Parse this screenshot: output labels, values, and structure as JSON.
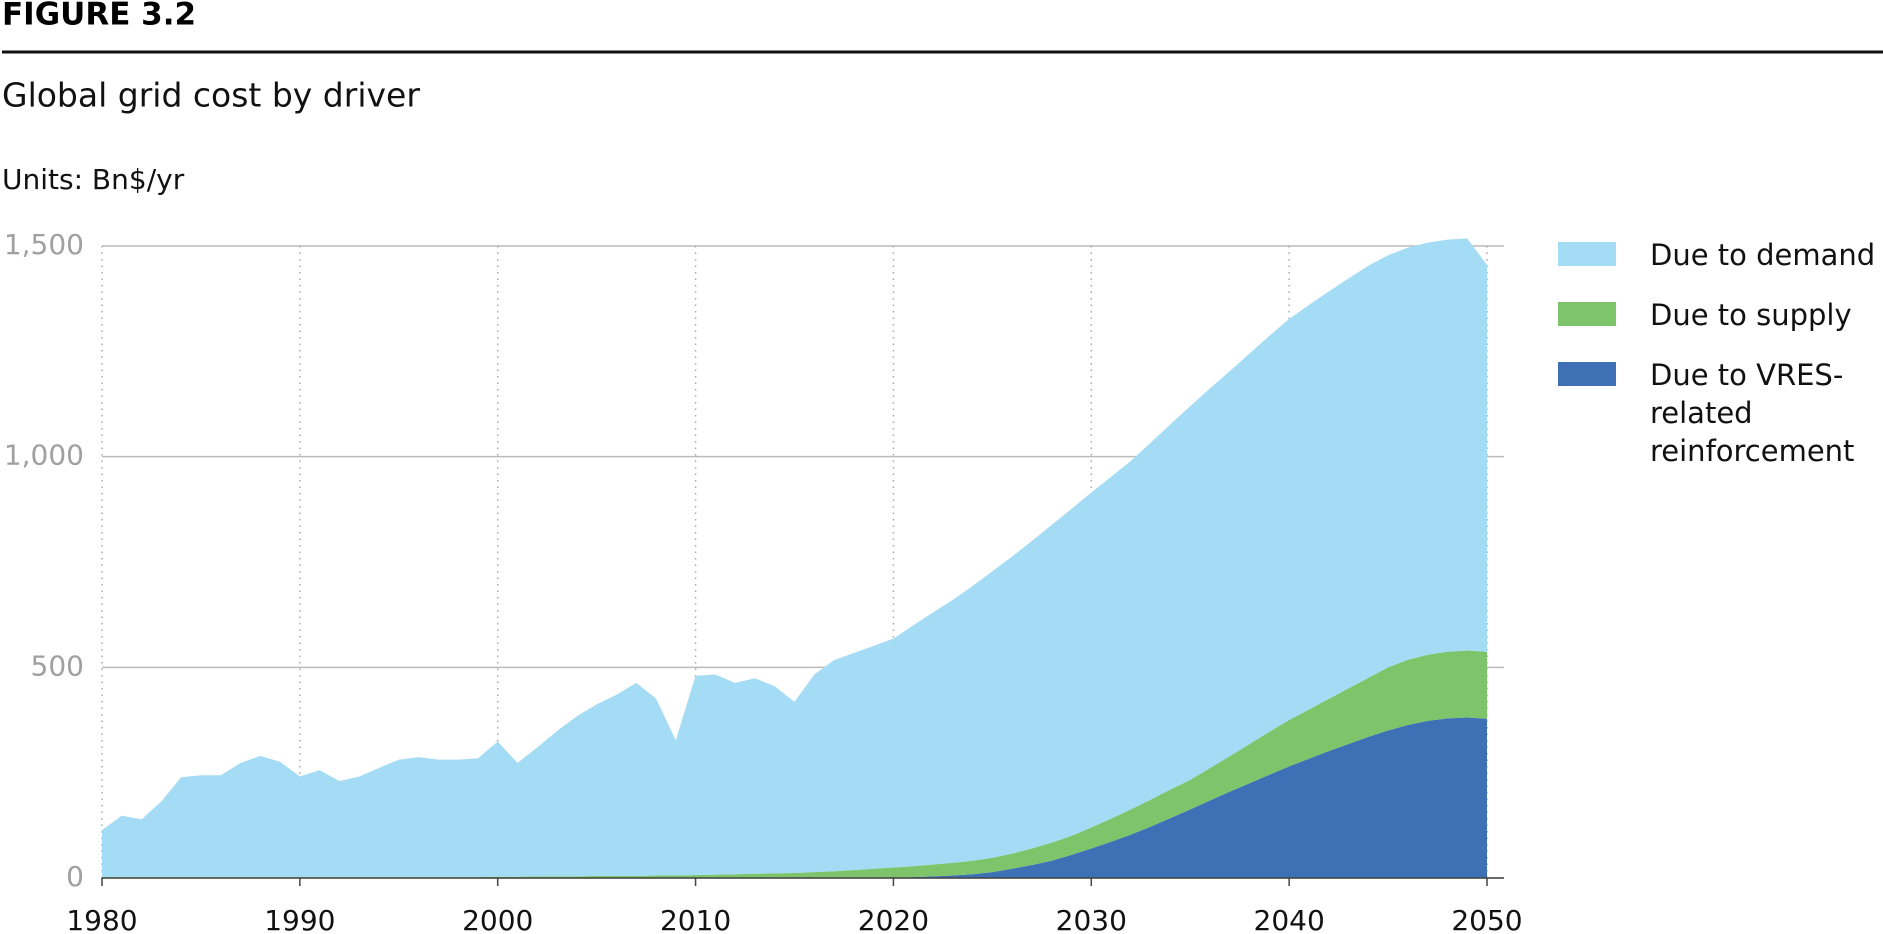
{
  "chart_data": {
    "type": "stacked-area",
    "figure_label": "FIGURE 3.2",
    "title": "Global grid cost by driver",
    "subtitle": "Units: Bn$/yr",
    "x": [
      1980,
      1981,
      1982,
      1983,
      1984,
      1985,
      1986,
      1987,
      1988,
      1989,
      1990,
      1991,
      1992,
      1993,
      1994,
      1995,
      1996,
      1997,
      1998,
      1999,
      2000,
      2001,
      2002,
      2003,
      2004,
      2005,
      2006,
      2007,
      2008,
      2009,
      2010,
      2011,
      2012,
      2013,
      2014,
      2015,
      2016,
      2017,
      2018,
      2019,
      2020,
      2021,
      2022,
      2023,
      2024,
      2025,
      2026,
      2027,
      2028,
      2029,
      2030,
      2031,
      2032,
      2033,
      2034,
      2035,
      2036,
      2037,
      2038,
      2039,
      2040,
      2041,
      2042,
      2043,
      2044,
      2045,
      2046,
      2047,
      2048,
      2049,
      2050
    ],
    "series": [
      {
        "name": "Due to VRES-related reinforcement",
        "color": "#3e70b6",
        "values": [
          0,
          0,
          0,
          0,
          0,
          0,
          0,
          0,
          0,
          0,
          0,
          0,
          0,
          0,
          0,
          0,
          0,
          0,
          0,
          0,
          0,
          0,
          0,
          0,
          0,
          0,
          0,
          0,
          0,
          0,
          0,
          0,
          0,
          0,
          0,
          0,
          0,
          0,
          0,
          0,
          1,
          2,
          4,
          6,
          9,
          14,
          22,
          31,
          41,
          55,
          70,
          86,
          103,
          122,
          142,
          163,
          184,
          205,
          225,
          245,
          265,
          283,
          301,
          318,
          335,
          350,
          363,
          373,
          379,
          381,
          378
        ]
      },
      {
        "name": "Due to supply",
        "color": "#7dc46a",
        "values": [
          2,
          2,
          2,
          2,
          2,
          2,
          2,
          2,
          2,
          2,
          2,
          2,
          2,
          2,
          2,
          2,
          2,
          2,
          2,
          2,
          3,
          3,
          4,
          4,
          4,
          5,
          5,
          5,
          6,
          6,
          7,
          8,
          9,
          10,
          11,
          12,
          14,
          16,
          19,
          22,
          24,
          26,
          28,
          30,
          32,
          34,
          36,
          39,
          43,
          45,
          50,
          55,
          60,
          64,
          68,
          70,
          77,
          84,
          93,
          102,
          110,
          117,
          124,
          132,
          140,
          150,
          155,
          157,
          158,
          159,
          159
        ]
      },
      {
        "name": "Due to demand",
        "color": "#a5dcf5",
        "values": [
          112,
          146,
          137,
          180,
          237,
          242,
          242,
          271,
          288,
          274,
          239,
          254,
          228,
          239,
          259,
          279,
          285,
          279,
          279,
          282,
          321,
          270,
          306,
          345,
          380,
          407,
          430,
          458,
          420,
          321,
          473,
          475,
          454,
          464,
          444,
          406,
          469,
          501,
          515,
          529,
          543,
          572,
          598,
          624,
          652,
          680,
          705,
          730,
          754,
          776,
          795,
          811,
          827,
          847,
          867,
          887,
          901,
          914,
          927,
          940,
          952,
          960,
          967,
          973,
          978,
          978,
          978,
          978,
          978,
          978,
          918
        ]
      }
    ],
    "xlim": [
      1980,
      2050
    ],
    "xticks": [
      1980,
      1990,
      2000,
      2010,
      2020,
      2030,
      2040,
      2050
    ],
    "ylim": [
      0,
      1500
    ],
    "yticks": [
      0,
      500,
      {
        "value": 1000,
        "label": "1,000"
      },
      {
        "value": 1500,
        "label": "1,500"
      }
    ],
    "grid": true,
    "legend": "right"
  }
}
